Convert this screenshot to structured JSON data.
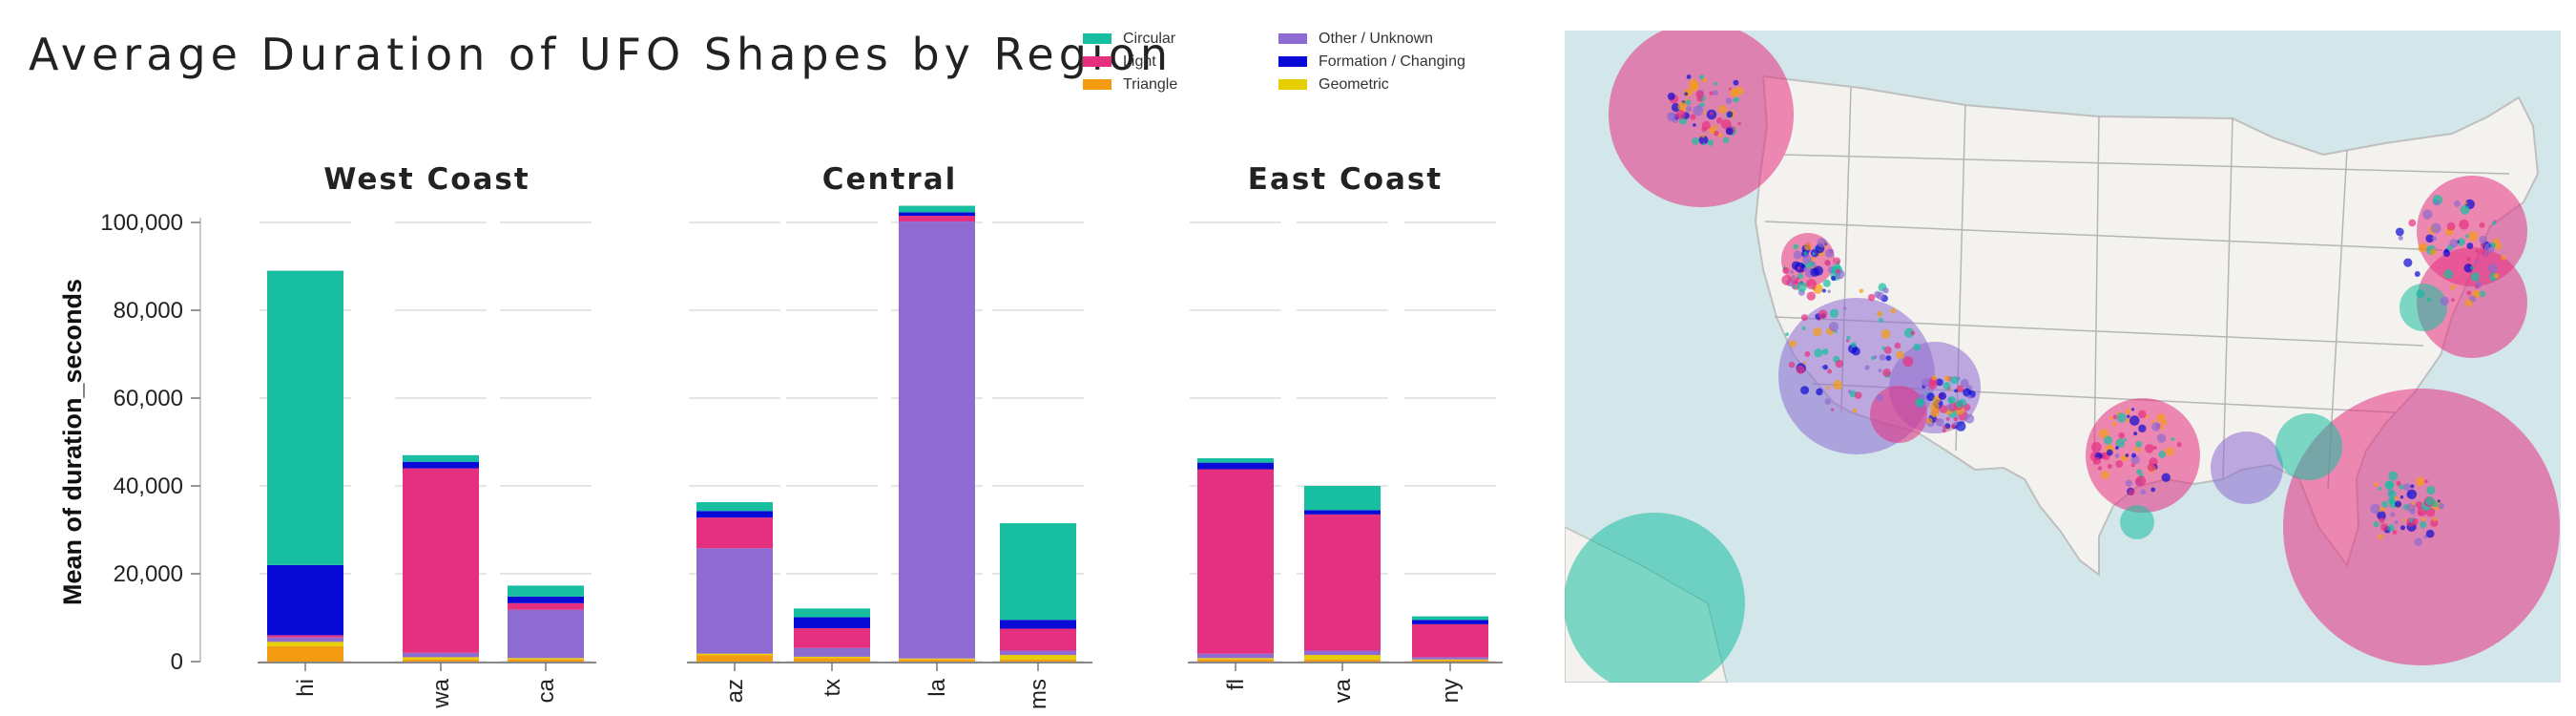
{
  "title": "Average Duration of UFO Shapes by Region",
  "legend": [
    {
      "label": "Circular",
      "color": "#17bfa0"
    },
    {
      "label": "Light",
      "color": "#e5307f"
    },
    {
      "label": "Triangle",
      "color": "#f39c12"
    },
    {
      "label": "Other / Unknown",
      "color": "#8e6bd0"
    },
    {
      "label": "Formation / Changing",
      "color": "#0a0ad6"
    },
    {
      "label": "Geometric",
      "color": "#e6cf00"
    }
  ],
  "chart_data": {
    "type": "bar",
    "stacked": true,
    "ylabel": "Mean of duration_seconds",
    "yticks": [
      "0",
      "20,000",
      "40,000",
      "60,000",
      "80,000",
      "100,000"
    ],
    "ylim": [
      0,
      100000
    ],
    "stack_order": [
      "Triangle",
      "Geometric",
      "Other / Unknown",
      "Light",
      "Formation / Changing",
      "Circular"
    ],
    "panels": [
      {
        "title": "West Coast",
        "categories": [
          "hi",
          "wa",
          "ca"
        ],
        "series": [
          {
            "name": "Triangle",
            "values": [
              3500,
              500,
              500
            ]
          },
          {
            "name": "Geometric",
            "values": [
              1000,
              500,
              300
            ]
          },
          {
            "name": "Other / Unknown",
            "values": [
              1000,
              1000,
              11000
            ]
          },
          {
            "name": "Light",
            "values": [
              500,
              42000,
              1500
            ]
          },
          {
            "name": "Formation / Changing",
            "values": [
              16000,
              1500,
              1500
            ]
          },
          {
            "name": "Circular",
            "values": [
              67000,
              1500,
              2500
            ]
          }
        ]
      },
      {
        "title": "Central",
        "categories": [
          "az",
          "tx",
          "la",
          "ms"
        ],
        "series": [
          {
            "name": "Triangle",
            "values": [
              1500,
              800,
              500,
              500
            ]
          },
          {
            "name": "Geometric",
            "values": [
              300,
              300,
              200,
              1000
            ]
          },
          {
            "name": "Other / Unknown",
            "values": [
              24000,
              2000,
              99500,
              1000
            ]
          },
          {
            "name": "Light",
            "values": [
              7000,
              4500,
              1300,
              5000
            ]
          },
          {
            "name": "Formation / Changing",
            "values": [
              1500,
              2500,
              800,
              2000
            ]
          },
          {
            "name": "Circular",
            "values": [
              2000,
              2000,
              1500,
              22000
            ]
          }
        ]
      },
      {
        "title": "East Coast",
        "categories": [
          "fl",
          "va",
          "ny"
        ],
        "series": [
          {
            "name": "Triangle",
            "values": [
              500,
              500,
              300
            ]
          },
          {
            "name": "Geometric",
            "values": [
              300,
              1000,
              200
            ]
          },
          {
            "name": "Other / Unknown",
            "values": [
              1000,
              1000,
              500
            ]
          },
          {
            "name": "Light",
            "values": [
              42000,
              31000,
              7500
            ]
          },
          {
            "name": "Formation / Changing",
            "values": [
              1500,
              1000,
              1000
            ]
          },
          {
            "name": "Circular",
            "values": [
              1000,
              5500,
              800
            ]
          }
        ]
      }
    ]
  },
  "map": {
    "type": "bubble-map",
    "region": "Contiguous United States with Alaska and Hawaii",
    "bubble_colors": [
      "#e5307f",
      "#17bfa0",
      "#8e6bd0"
    ]
  }
}
